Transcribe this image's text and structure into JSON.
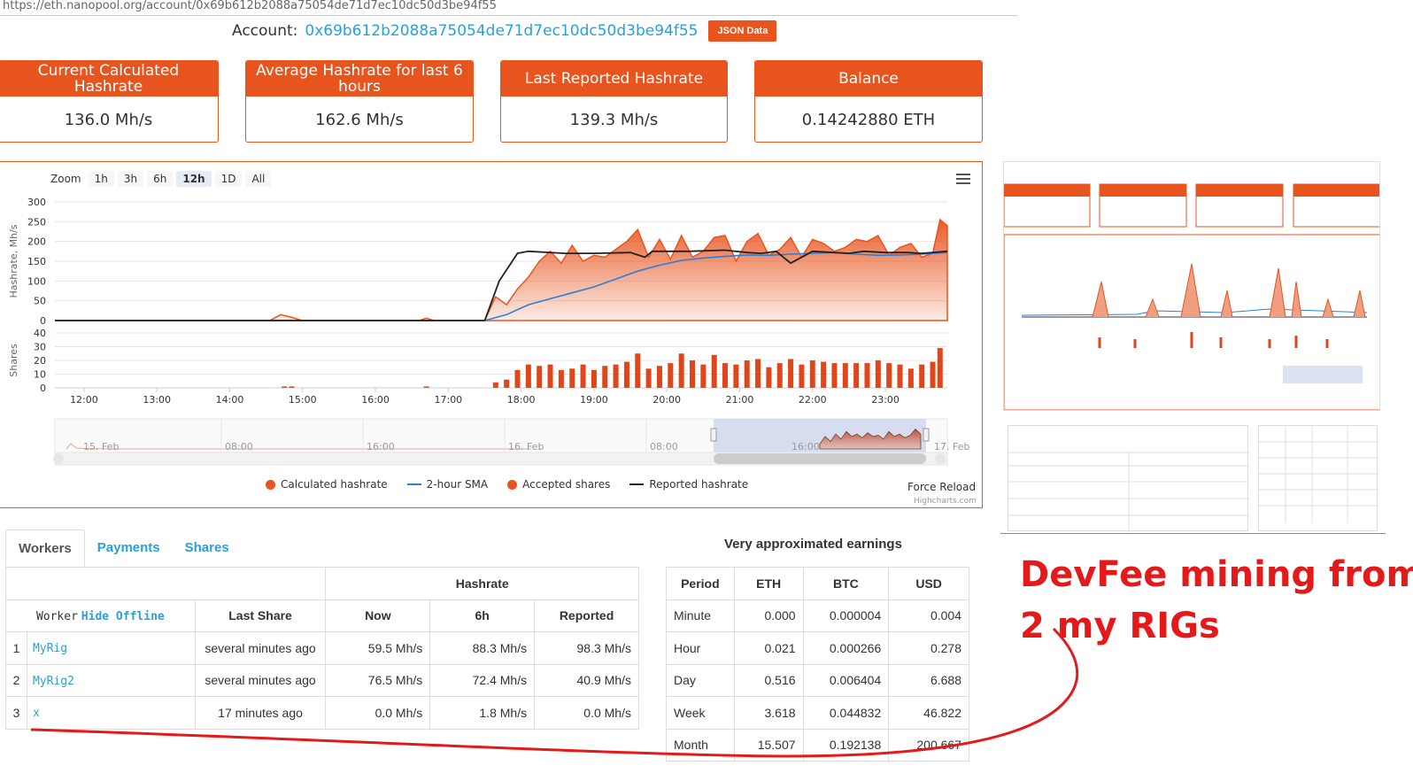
{
  "browser": {
    "url": "https://eth.nanopool.org/account/0x69b612b2088a75054de71d7ec10dc50d3be94f55"
  },
  "account": {
    "label": "Account:",
    "address": "0x69b612b2088a75054de71d7ec10dc50d3be94f55",
    "json_button": "JSON Data"
  },
  "stats": [
    {
      "title": "Current Calculated Hashrate",
      "value": "136.0 Mh/s"
    },
    {
      "title": "Average Hashrate for last 6 hours",
      "value": "162.6 Mh/s"
    },
    {
      "title": "Last Reported Hashrate",
      "value": "139.3 Mh/s"
    },
    {
      "title": "Balance",
      "value": "0.14242880 ETH"
    }
  ],
  "zoom": {
    "label": "Zoom",
    "options": [
      "1h",
      "3h",
      "6h",
      "12h",
      "1D",
      "All"
    ],
    "selected": "12h"
  },
  "chart_data": {
    "type": "area",
    "colors": {
      "calculated": "#e8541e",
      "sma": "#2a7fd8",
      "shares": "#e0461a",
      "reported": "#222222"
    },
    "x_ticks": [
      "12:00",
      "13:00",
      "14:00",
      "15:00",
      "16:00",
      "17:00",
      "18:00",
      "19:00",
      "20:00",
      "21:00",
      "22:00",
      "23:00"
    ],
    "ylabel_hashrate": "Hashrate, Mh/s",
    "ylabel_shares": "Shares",
    "hashrate_yticks": [
      0,
      50,
      100,
      150,
      200,
      250,
      300
    ],
    "hashrate_ylim": [
      0,
      300
    ],
    "shares_yticks": [
      0,
      10,
      20,
      30,
      40
    ],
    "shares_ylim": [
      0,
      40
    ],
    "x_range_hours": [
      11.6,
      23.85
    ],
    "series": [
      {
        "name": "Calculated hashrate",
        "x": [
          11.6,
          14.55,
          14.7,
          14.85,
          15.0,
          16.6,
          16.7,
          16.8,
          17.5,
          17.65,
          17.8,
          17.95,
          18.1,
          18.25,
          18.4,
          18.55,
          18.7,
          18.85,
          19.0,
          19.15,
          19.3,
          19.45,
          19.6,
          19.75,
          19.9,
          20.05,
          20.2,
          20.35,
          20.5,
          20.65,
          20.8,
          20.95,
          21.1,
          21.25,
          21.4,
          21.55,
          21.7,
          21.85,
          22.0,
          22.15,
          22.3,
          22.45,
          22.6,
          22.75,
          22.9,
          23.05,
          23.2,
          23.35,
          23.5,
          23.65,
          23.75,
          23.85
        ],
        "values": [
          0,
          0,
          15,
          8,
          0,
          0,
          6,
          0,
          0,
          60,
          40,
          80,
          110,
          150,
          175,
          145,
          190,
          150,
          165,
          160,
          180,
          200,
          230,
          160,
          205,
          155,
          215,
          160,
          175,
          210,
          215,
          150,
          200,
          220,
          165,
          180,
          210,
          160,
          205,
          195,
          175,
          185,
          205,
          200,
          215,
          165,
          185,
          195,
          160,
          170,
          255,
          240
        ]
      },
      {
        "name": "2-hour SMA",
        "x": [
          11.6,
          17.5,
          17.8,
          18.1,
          18.4,
          18.7,
          19.0,
          19.3,
          19.6,
          19.9,
          20.2,
          20.5,
          20.8,
          21.1,
          21.4,
          21.7,
          22.0,
          22.3,
          22.6,
          22.9,
          23.2,
          23.5,
          23.85
        ],
        "values": [
          0,
          0,
          15,
          40,
          55,
          70,
          85,
          105,
          125,
          140,
          152,
          158,
          162,
          166,
          165,
          168,
          170,
          172,
          168,
          165,
          166,
          168,
          172
        ]
      },
      {
        "name": "Reported hashrate",
        "x": [
          11.6,
          17.5,
          17.7,
          17.95,
          18.1,
          18.6,
          19.0,
          19.5,
          19.7,
          19.8,
          20.3,
          20.8,
          21.1,
          21.3,
          21.5,
          21.7,
          22.0,
          22.3,
          22.5,
          22.7,
          23.0,
          23.3,
          23.5,
          23.85
        ],
        "values": [
          0,
          0,
          100,
          170,
          175,
          170,
          170,
          172,
          160,
          175,
          175,
          178,
          172,
          170,
          175,
          145,
          175,
          172,
          170,
          175,
          172,
          172,
          170,
          175
        ]
      },
      {
        "name": "Accepted shares",
        "x": [
          14.75,
          14.85,
          16.7,
          17.65,
          17.8,
          17.95,
          18.1,
          18.25,
          18.4,
          18.55,
          18.7,
          18.85,
          19.0,
          19.15,
          19.3,
          19.45,
          19.6,
          19.75,
          19.9,
          20.05,
          20.2,
          20.35,
          20.5,
          20.65,
          20.8,
          20.95,
          21.1,
          21.25,
          21.4,
          21.55,
          21.7,
          21.85,
          22.0,
          22.15,
          22.3,
          22.45,
          22.6,
          22.75,
          22.9,
          23.05,
          23.2,
          23.35,
          23.5,
          23.65,
          23.75
        ],
        "values": [
          1,
          1,
          1,
          4,
          6,
          13,
          17,
          16,
          17,
          13,
          14,
          17,
          13,
          16,
          17,
          19,
          25,
          14,
          16,
          18,
          25,
          20,
          17,
          24,
          18,
          17,
          20,
          21,
          15,
          18,
          21,
          17,
          20,
          19,
          18,
          18,
          18,
          18,
          20,
          18,
          17,
          14,
          17,
          19,
          29
        ]
      }
    ]
  },
  "navigator": {
    "labels": [
      "15. Feb",
      "08:00",
      "16:00",
      "16. Feb",
      "08:00",
      "16:00",
      "17. Feb"
    ]
  },
  "legend": [
    "Calculated hashrate",
    "2-hour SMA",
    "Accepted shares",
    "Reported hashrate"
  ],
  "force_reload": "Force Reload",
  "credits": "Highcharts.com",
  "tabs": [
    "Workers",
    "Payments",
    "Shares"
  ],
  "workers": {
    "hashrate_group": "Hashrate",
    "headers": {
      "worker": "Worker",
      "hide_offline": "Hide Offline",
      "last_share": "Last Share",
      "now": "Now",
      "h6": "6h",
      "reported": "Reported"
    },
    "rows": [
      {
        "n": "1",
        "name": "MyRig",
        "last_share": "several minutes ago",
        "now": "59.5 Mh/s",
        "h6": "88.3 Mh/s",
        "reported": "98.3 Mh/s"
      },
      {
        "n": "2",
        "name": "MyRig2",
        "last_share": "several minutes ago",
        "now": "76.5 Mh/s",
        "h6": "72.4 Mh/s",
        "reported": "40.9 Mh/s"
      },
      {
        "n": "3",
        "name": "x",
        "last_share": "17 minutes ago",
        "now": "0.0 Mh/s",
        "h6": "1.8 Mh/s",
        "reported": "0.0 Mh/s"
      }
    ]
  },
  "earnings": {
    "title": "Very approximated earnings",
    "headers": [
      "Period",
      "ETH",
      "BTC",
      "USD"
    ],
    "rows": [
      [
        "Minute",
        "0.000",
        "0.000004",
        "0.004"
      ],
      [
        "Hour",
        "0.021",
        "0.000266",
        "0.278"
      ],
      [
        "Day",
        "0.516",
        "0.006404",
        "6.688"
      ],
      [
        "Week",
        "3.618",
        "0.044832",
        "46.822"
      ],
      [
        "Month",
        "15.507",
        "0.192138",
        "200.667"
      ]
    ]
  },
  "annotation": {
    "line1": "DevFee mining from",
    "line2": "2 my RIGs",
    "color": "#e41a1a"
  }
}
